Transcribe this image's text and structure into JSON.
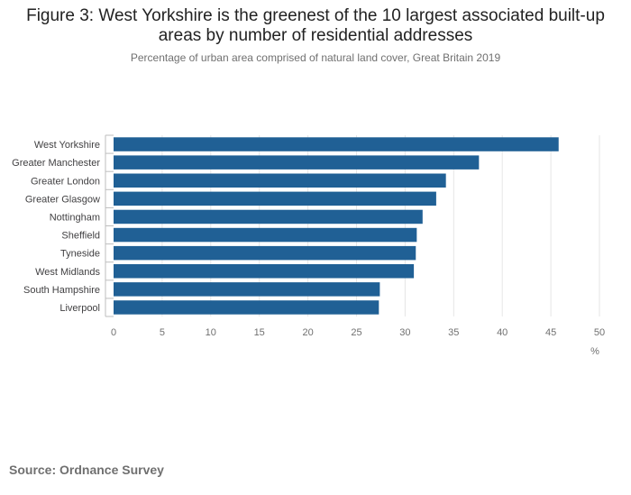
{
  "header": {
    "title": "Figure 3: West Yorkshire is the greenest of the 10 largest associated built-up areas by number of residential addresses",
    "subtitle": "Percentage of urban area comprised of natural land cover, Great Britain 2019"
  },
  "footer": {
    "source": "Source: Ordnance Survey"
  },
  "chart_data": {
    "type": "bar",
    "orientation": "horizontal",
    "categories": [
      "West Yorkshire",
      "Greater Manchester",
      "Greater London",
      "Greater Glasgow",
      "Nottingham",
      "Sheffield",
      "Tyneside",
      "West Midlands",
      "South Hampshire",
      "Liverpool"
    ],
    "values": [
      45.8,
      37.6,
      34.2,
      33.2,
      31.8,
      31.2,
      31.1,
      30.9,
      27.4,
      27.3
    ],
    "xlabel": "%",
    "xlim": [
      0,
      50
    ],
    "xticks": [
      0,
      5,
      10,
      15,
      20,
      25,
      30,
      35,
      40,
      45,
      50
    ],
    "grid": true,
    "colors": {
      "bar": "#206095",
      "grid": "#e6e6e6",
      "axis": "#bebebe",
      "tick_text": "#707070"
    }
  }
}
